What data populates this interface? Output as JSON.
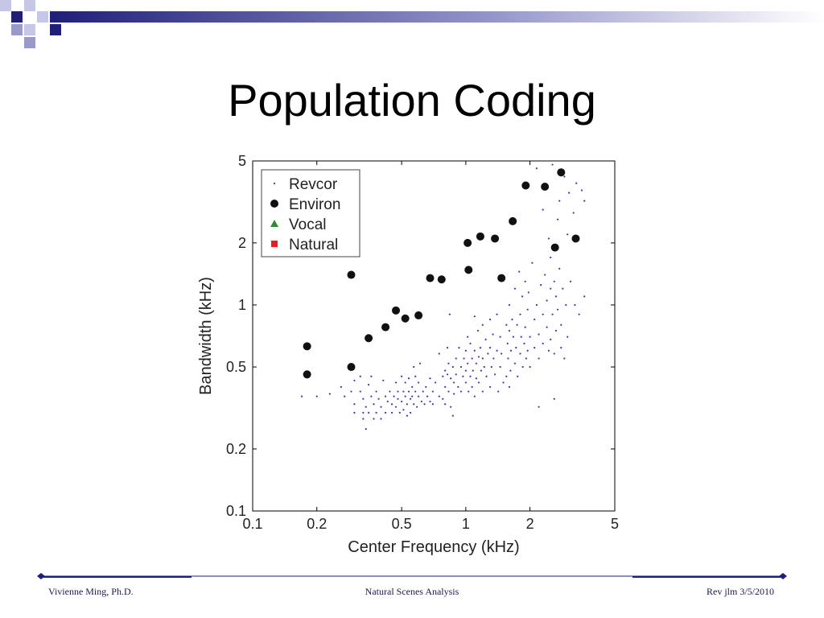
{
  "slide": {
    "title": "Population Coding",
    "footer": {
      "left": "Vivienne Ming, Ph.D.",
      "center": "Natural Scenes Analysis",
      "right": "Rev jlm 3/5/2010"
    }
  },
  "colors": {
    "accent": "#1f1f7a",
    "deco_light": "#c6c6e6",
    "deco_mid": "#9999cc",
    "revcor": "#3a3aa8",
    "environ": "#111111",
    "vocal": "#2e8b2e",
    "natural": "#e02020"
  },
  "chart_data": {
    "type": "scatter",
    "title": "",
    "xlabel": "Center Frequency (kHz)",
    "ylabel": "Bandwidth (kHz)",
    "xscale": "log",
    "yscale": "log",
    "xlim": [
      0.1,
      5
    ],
    "ylim": [
      0.1,
      5
    ],
    "xticks": [
      0.1,
      0.2,
      0.5,
      1,
      2,
      5
    ],
    "xtick_labels": [
      "0.1",
      "0.2",
      "0.5",
      "1",
      "2",
      "5"
    ],
    "yticks": [
      0.1,
      0.2,
      0.5,
      1,
      2,
      5
    ],
    "ytick_labels": [
      "0.1",
      "0.2",
      "0.5",
      "1",
      "2",
      "5"
    ],
    "grid": false,
    "legend": {
      "placement": "top-left",
      "entries": [
        {
          "name": "Revcor",
          "marker": "dot"
        },
        {
          "name": "Environ",
          "marker": "circle"
        },
        {
          "name": "Vocal",
          "marker": "triangle"
        },
        {
          "name": "Natural",
          "marker": "square"
        }
      ]
    },
    "series": [
      {
        "name": "Revcor",
        "marker": "dot",
        "points": [
          [
            0.17,
            0.36
          ],
          [
            0.2,
            0.36
          ],
          [
            0.23,
            0.37
          ],
          [
            0.26,
            0.4
          ],
          [
            0.27,
            0.36
          ],
          [
            0.29,
            0.38
          ],
          [
            0.3,
            0.43
          ],
          [
            0.3,
            0.33
          ],
          [
            0.3,
            0.3
          ],
          [
            0.32,
            0.45
          ],
          [
            0.32,
            0.38
          ],
          [
            0.33,
            0.35
          ],
          [
            0.33,
            0.3
          ],
          [
            0.33,
            0.28
          ],
          [
            0.34,
            0.25
          ],
          [
            0.34,
            0.32
          ],
          [
            0.35,
            0.41
          ],
          [
            0.35,
            0.3
          ],
          [
            0.36,
            0.45
          ],
          [
            0.36,
            0.36
          ],
          [
            0.37,
            0.28
          ],
          [
            0.37,
            0.33
          ],
          [
            0.38,
            0.38
          ],
          [
            0.38,
            0.3
          ],
          [
            0.39,
            0.35
          ],
          [
            0.4,
            0.32
          ],
          [
            0.4,
            0.28
          ],
          [
            0.41,
            0.43
          ],
          [
            0.42,
            0.36
          ],
          [
            0.42,
            0.3
          ],
          [
            0.43,
            0.34
          ],
          [
            0.44,
            0.38
          ],
          [
            0.45,
            0.33
          ],
          [
            0.45,
            0.3
          ],
          [
            0.46,
            0.36
          ],
          [
            0.47,
            0.32
          ],
          [
            0.47,
            0.42
          ],
          [
            0.48,
            0.38
          ],
          [
            0.48,
            0.35
          ],
          [
            0.49,
            0.3
          ],
          [
            0.5,
            0.34
          ],
          [
            0.5,
            0.45
          ],
          [
            0.51,
            0.38
          ],
          [
            0.51,
            0.31
          ],
          [
            0.52,
            0.36
          ],
          [
            0.52,
            0.42
          ],
          [
            0.53,
            0.33
          ],
          [
            0.53,
            0.29
          ],
          [
            0.54,
            0.38
          ],
          [
            0.54,
            0.44
          ],
          [
            0.55,
            0.35
          ],
          [
            0.55,
            0.3
          ],
          [
            0.56,
            0.4
          ],
          [
            0.56,
            0.36
          ],
          [
            0.57,
            0.5
          ],
          [
            0.57,
            0.33
          ],
          [
            0.58,
            0.45
          ],
          [
            0.58,
            0.38
          ],
          [
            0.59,
            0.32
          ],
          [
            0.6,
            0.42
          ],
          [
            0.6,
            0.36
          ],
          [
            0.61,
            0.52
          ],
          [
            0.62,
            0.34
          ],
          [
            0.63,
            0.38
          ],
          [
            0.64,
            0.33
          ],
          [
            0.65,
            0.4
          ],
          [
            0.66,
            0.36
          ],
          [
            0.68,
            0.44
          ],
          [
            0.68,
            0.34
          ],
          [
            0.7,
            0.38
          ],
          [
            0.7,
            0.33
          ],
          [
            0.72,
            0.42
          ],
          [
            0.75,
            0.58
          ],
          [
            0.75,
            0.36
          ],
          [
            0.78,
            0.45
          ],
          [
            0.78,
            0.35
          ],
          [
            0.8,
            0.48
          ],
          [
            0.8,
            0.4
          ],
          [
            0.8,
            0.33
          ],
          [
            0.82,
            0.62
          ],
          [
            0.82,
            0.46
          ],
          [
            0.83,
            0.52
          ],
          [
            0.83,
            0.38
          ],
          [
            0.84,
            0.9
          ],
          [
            0.85,
            0.44
          ],
          [
            0.85,
            0.32
          ],
          [
            0.87,
            0.5
          ],
          [
            0.87,
            0.29
          ],
          [
            0.88,
            0.42
          ],
          [
            0.88,
            0.37
          ],
          [
            0.9,
            0.55
          ],
          [
            0.9,
            0.46
          ],
          [
            0.92,
            0.4
          ],
          [
            0.93,
            0.62
          ],
          [
            0.95,
            0.5
          ],
          [
            0.95,
            0.38
          ],
          [
            0.97,
            0.45
          ],
          [
            0.98,
            0.55
          ],
          [
            1.0,
            0.6
          ],
          [
            1.0,
            0.48
          ],
          [
            1.0,
            0.42
          ],
          [
            1.02,
            0.7
          ],
          [
            1.02,
            0.52
          ],
          [
            1.03,
            0.38
          ],
          [
            1.05,
            0.65
          ],
          [
            1.05,
            0.45
          ],
          [
            1.07,
            0.55
          ],
          [
            1.07,
            0.4
          ],
          [
            1.08,
            0.48
          ],
          [
            1.1,
            0.88
          ],
          [
            1.1,
            0.6
          ],
          [
            1.1,
            0.36
          ],
          [
            1.12,
            0.52
          ],
          [
            1.12,
            0.44
          ],
          [
            1.14,
            0.75
          ],
          [
            1.15,
            0.56
          ],
          [
            1.15,
            0.42
          ],
          [
            1.17,
            0.62
          ],
          [
            1.18,
            0.48
          ],
          [
            1.2,
            0.8
          ],
          [
            1.2,
            0.55
          ],
          [
            1.2,
            0.38
          ],
          [
            1.22,
            0.5
          ],
          [
            1.24,
            0.68
          ],
          [
            1.25,
            0.45
          ],
          [
            1.27,
            0.58
          ],
          [
            1.3,
            0.85
          ],
          [
            1.3,
            0.62
          ],
          [
            1.3,
            0.4
          ],
          [
            1.32,
            0.5
          ],
          [
            1.34,
            0.72
          ],
          [
            1.35,
            0.55
          ],
          [
            1.37,
            0.46
          ],
          [
            1.4,
            0.9
          ],
          [
            1.4,
            0.6
          ],
          [
            1.42,
            0.38
          ],
          [
            1.45,
            0.7
          ],
          [
            1.45,
            0.5
          ],
          [
            1.47,
            0.58
          ],
          [
            1.5,
            0.42
          ],
          [
            1.55,
            0.8
          ],
          [
            1.55,
            0.45
          ],
          [
            1.57,
            0.65
          ],
          [
            1.58,
            0.55
          ],
          [
            1.6,
            1.0
          ],
          [
            1.6,
            0.75
          ],
          [
            1.6,
            0.4
          ],
          [
            1.62,
            0.48
          ],
          [
            1.63,
            0.6
          ],
          [
            1.65,
            0.85
          ],
          [
            1.67,
            0.7
          ],
          [
            1.7,
            1.2
          ],
          [
            1.7,
            0.52
          ],
          [
            1.72,
            0.62
          ],
          [
            1.74,
            0.8
          ],
          [
            1.75,
            0.45
          ],
          [
            1.78,
            1.45
          ],
          [
            1.8,
            0.9
          ],
          [
            1.8,
            0.58
          ],
          [
            1.82,
            0.7
          ],
          [
            1.84,
            1.1
          ],
          [
            1.85,
            0.5
          ],
          [
            1.88,
            0.65
          ],
          [
            1.9,
            1.3
          ],
          [
            1.9,
            0.78
          ],
          [
            1.92,
            0.55
          ],
          [
            1.95,
            0.95
          ],
          [
            1.95,
            0.6
          ],
          [
            1.97,
            1.15
          ],
          [
            2.0,
            0.7
          ],
          [
            2.0,
            0.5
          ],
          [
            2.05,
            1.6
          ],
          [
            2.1,
            0.85
          ],
          [
            2.1,
            0.62
          ],
          [
            2.15,
            1.0
          ],
          [
            2.2,
            0.72
          ],
          [
            2.2,
            0.55
          ],
          [
            2.25,
            1.25
          ],
          [
            2.3,
            0.9
          ],
          [
            2.3,
            0.65
          ],
          [
            2.35,
            1.4
          ],
          [
            2.4,
            1.05
          ],
          [
            2.4,
            0.78
          ],
          [
            2.45,
            0.6
          ],
          [
            2.5,
            1.7
          ],
          [
            2.5,
            1.2
          ],
          [
            2.5,
            0.68
          ],
          [
            2.55,
            0.9
          ],
          [
            2.6,
            1.3
          ],
          [
            2.6,
            0.58
          ],
          [
            2.65,
            1.1
          ],
          [
            2.65,
            0.75
          ],
          [
            2.7,
            2.6
          ],
          [
            2.7,
            0.95
          ],
          [
            2.75,
            3.2
          ],
          [
            2.75,
            1.5
          ],
          [
            2.8,
            0.8
          ],
          [
            2.8,
            0.62
          ],
          [
            2.85,
            1.2
          ],
          [
            2.9,
            0.55
          ],
          [
            2.9,
            4.2
          ],
          [
            2.95,
            1.0
          ],
          [
            3.0,
            2.2
          ],
          [
            3.0,
            0.7
          ],
          [
            3.05,
            3.5
          ],
          [
            3.1,
            1.3
          ],
          [
            3.2,
            2.8
          ],
          [
            3.25,
            1.0
          ],
          [
            3.3,
            3.9
          ],
          [
            3.4,
            0.9
          ],
          [
            3.5,
            3.6
          ],
          [
            3.6,
            1.1
          ],
          [
            3.6,
            3.2
          ],
          [
            2.2,
            0.32
          ],
          [
            2.6,
            0.35
          ],
          [
            2.3,
            2.9
          ],
          [
            2.45,
            2.1
          ],
          [
            2.15,
            4.6
          ],
          [
            2.55,
            4.8
          ]
        ]
      },
      {
        "name": "Environ",
        "marker": "circle",
        "points": [
          [
            0.18,
            0.63
          ],
          [
            0.18,
            0.46
          ],
          [
            0.29,
            1.4
          ],
          [
            0.29,
            0.5
          ],
          [
            0.35,
            0.69
          ],
          [
            0.42,
            0.78
          ],
          [
            0.47,
            0.94
          ],
          [
            0.52,
            0.86
          ],
          [
            0.6,
            0.89
          ],
          [
            0.68,
            1.35
          ],
          [
            0.77,
            1.33
          ],
          [
            1.02,
            2.0
          ],
          [
            1.03,
            1.48
          ],
          [
            1.17,
            2.15
          ],
          [
            1.37,
            2.1
          ],
          [
            1.47,
            1.35
          ],
          [
            1.66,
            2.55
          ],
          [
            1.91,
            3.8
          ],
          [
            2.35,
            3.75
          ],
          [
            2.62,
            1.9
          ],
          [
            2.8,
            4.4
          ],
          [
            3.28,
            2.1
          ]
        ]
      },
      {
        "name": "Vocal",
        "marker": "triangle",
        "points": []
      },
      {
        "name": "Natural",
        "marker": "square",
        "points": []
      }
    ]
  }
}
